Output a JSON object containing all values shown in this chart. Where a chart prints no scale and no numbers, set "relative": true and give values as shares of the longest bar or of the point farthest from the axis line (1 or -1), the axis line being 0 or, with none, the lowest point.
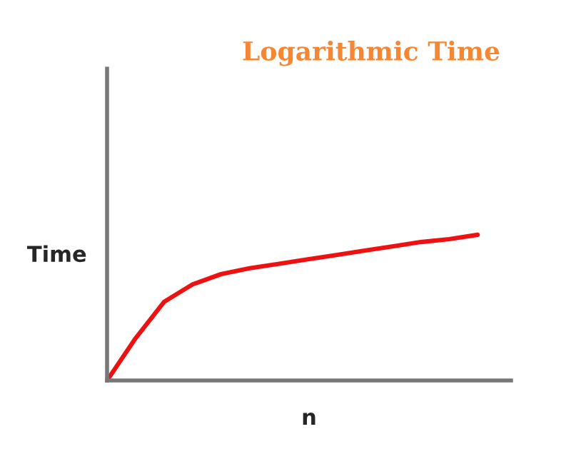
{
  "chart_data": {
    "type": "line",
    "title": "Logarithmic Time",
    "xlabel": "n",
    "ylabel": "Time",
    "relative": true,
    "categories": [
      null,
      null,
      null,
      null,
      null,
      null,
      null,
      null,
      null,
      null,
      null,
      null,
      null,
      null
    ],
    "series": [
      {
        "color": "#ee1111",
        "values": [
          0,
          0.29,
          0.54,
          0.66,
          0.73,
          0.77,
          0.8,
          0.83,
          0.86,
          0.89,
          0.92,
          0.95,
          0.97,
          1
        ]
      }
    ],
    "marker": "none",
    "line_style": "solid"
  }
}
